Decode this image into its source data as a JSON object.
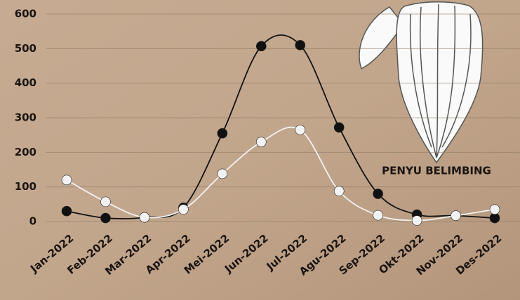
{
  "chart_data": {
    "type": "line",
    "annotation": "PENYU BELIMBING",
    "categories": [
      "Jan-2022",
      "Feb-2022",
      "Mar-2022",
      "Apr-2022",
      "Mei-2022",
      "Jun-2022",
      "Jul-2022",
      "Agu-2022",
      "Sep-2022",
      "Okt-2022",
      "Nov-2022",
      "Des-2022"
    ],
    "series": [
      {
        "color": "#111111",
        "values": [
          30,
          10,
          12,
          40,
          255,
          507,
          510,
          272,
          80,
          20,
          17,
          10
        ]
      },
      {
        "color": "#f2f2f2",
        "values": [
          120,
          57,
          12,
          35,
          138,
          230,
          265,
          88,
          18,
          3,
          17,
          35
        ]
      }
    ],
    "ylim": [
      0,
      600
    ],
    "yticks": [
      0,
      100,
      200,
      300,
      400,
      500,
      600
    ],
    "grid": true,
    "smooth": true
  }
}
